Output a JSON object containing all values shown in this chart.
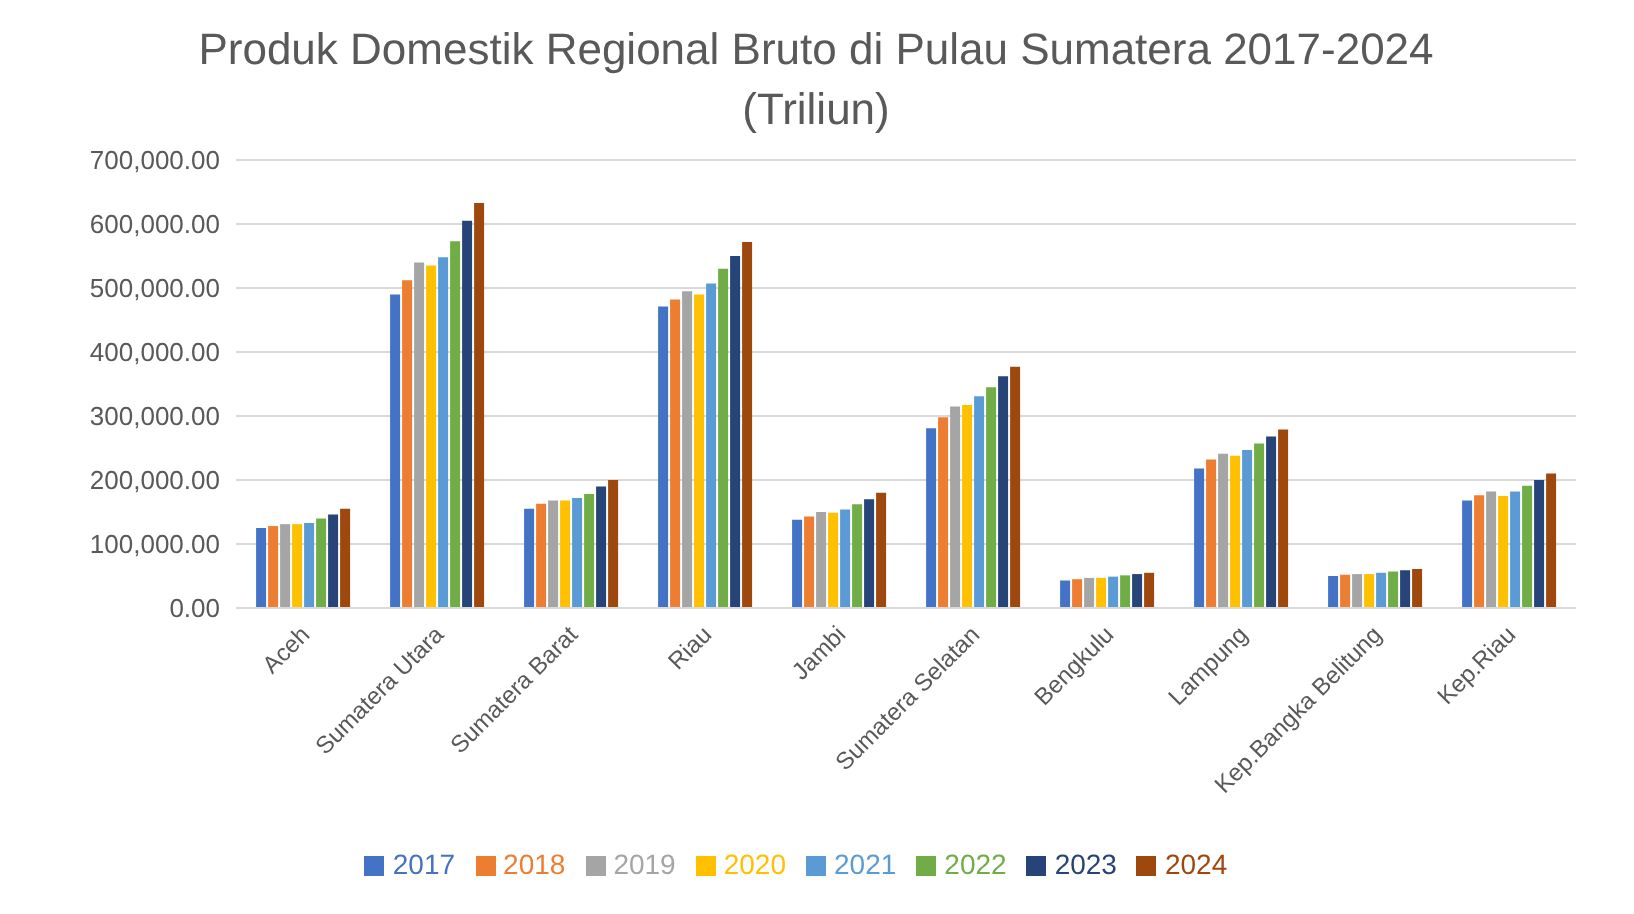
{
  "chart_data": {
    "type": "bar",
    "title": "Produk Domestik Regional Bruto di Pulau Sumatera 2017-2024 (Triliun)",
    "categories": [
      "Aceh",
      "Sumatera Utara",
      "Sumatera Barat",
      "Riau",
      "Jambi",
      "Sumatera Selatan",
      "Bengkulu",
      "Lampung",
      "Kep.Bangka Belitung",
      "Kep.Riau"
    ],
    "series": [
      {
        "name": "2017",
        "color": "#4472c4",
        "values": [
          125000,
          490000,
          155000,
          471000,
          138000,
          281000,
          43000,
          218000,
          50000,
          168000
        ]
      },
      {
        "name": "2018",
        "color": "#ed7d31",
        "values": [
          128000,
          512000,
          163000,
          482000,
          143000,
          298000,
          45000,
          232000,
          52000,
          176000
        ]
      },
      {
        "name": "2019",
        "color": "#a5a5a5",
        "values": [
          131000,
          540000,
          168000,
          495000,
          150000,
          315000,
          47000,
          241000,
          53000,
          182000
        ]
      },
      {
        "name": "2020",
        "color": "#ffc000",
        "values": [
          131000,
          535000,
          168000,
          490000,
          149000,
          317000,
          47000,
          238000,
          53000,
          175000
        ]
      },
      {
        "name": "2021",
        "color": "#5b9bd5",
        "values": [
          133000,
          548000,
          172000,
          507000,
          154000,
          331000,
          49000,
          247000,
          55000,
          182000
        ]
      },
      {
        "name": "2022",
        "color": "#70ad47",
        "values": [
          140000,
          573000,
          178000,
          530000,
          162000,
          345000,
          51000,
          257000,
          57000,
          191000
        ]
      },
      {
        "name": "2023",
        "color": "#264478",
        "values": [
          146000,
          605000,
          190000,
          550000,
          170000,
          362000,
          53000,
          268000,
          59000,
          200000
        ]
      },
      {
        "name": "2024",
        "color": "#9e480e",
        "values": [
          155000,
          633000,
          200000,
          572000,
          180000,
          377000,
          55000,
          279000,
          61000,
          210000
        ]
      }
    ],
    "ylim": [
      0,
      700000
    ],
    "yticks": [
      {
        "value": 0,
        "label": "0.00"
      },
      {
        "value": 100000,
        "label": "100,000.00"
      },
      {
        "value": 200000,
        "label": "200,000.00"
      },
      {
        "value": 300000,
        "label": "300,000.00"
      },
      {
        "value": 400000,
        "label": "400,000.00"
      },
      {
        "value": 500000,
        "label": "500,000.00"
      },
      {
        "value": 600000,
        "label": "600,000.00"
      },
      {
        "value": 700000,
        "label": "700,000.00"
      }
    ],
    "grid": "y",
    "legend": "bottom"
  }
}
